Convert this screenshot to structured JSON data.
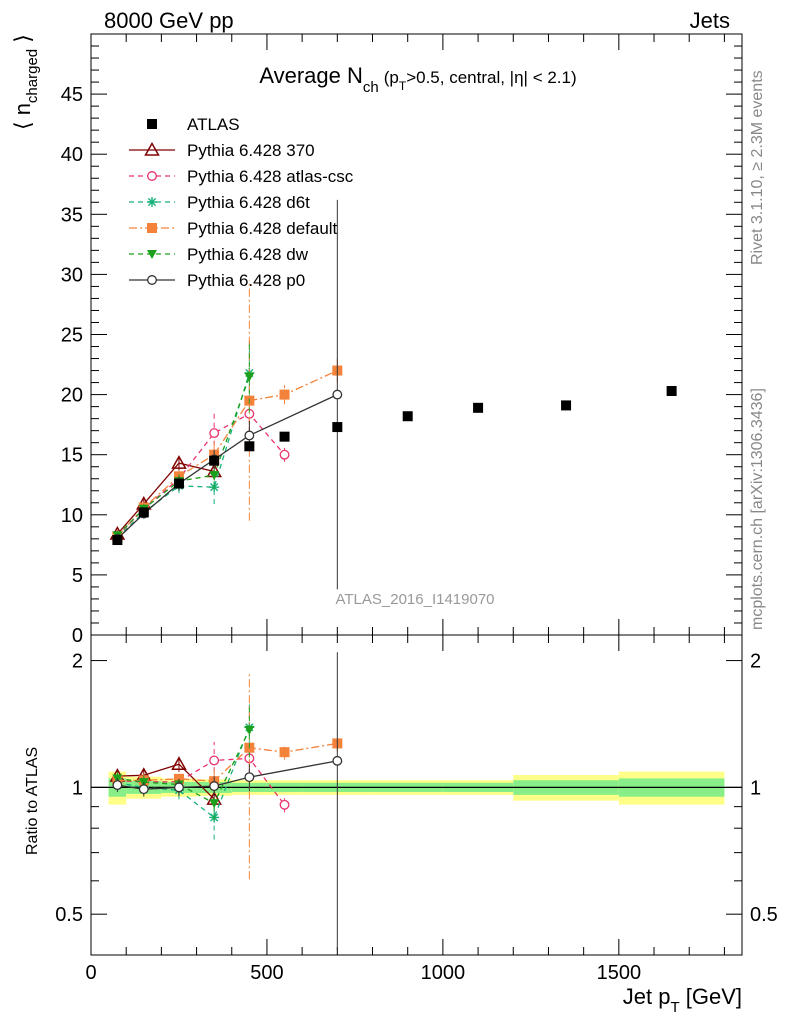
{
  "header": {
    "left": "8000 GeV pp",
    "right": "Jets"
  },
  "side_labels": {
    "rivet": "Rivet 3.1.10, ≥ 2.3M events",
    "mcplots": "mcplots.cern.ch [arXiv:1306.3436]"
  },
  "watermark": "ATLAS_2016_I1419070",
  "chart_data": {
    "type": "scatter",
    "title": {
      "main": "Average N",
      "sub": "ch",
      "cut_open": "(p",
      "cut_sub": "T",
      "cut_rest": ">0.5, central, |η| < 2.1)"
    },
    "xlabel": {
      "main": "Jet p",
      "sub": "T",
      "unit": " [GeV]"
    },
    "ylabel": {
      "open": "⟨ n",
      "sub": "charged",
      "close": " ⟩"
    },
    "ratio_ylabel": "Ratio to ATLAS",
    "xlim": [
      0,
      1850
    ],
    "ylim": [
      0,
      50
    ],
    "ratio_ylim": [
      0.4,
      2.3
    ],
    "ratio_scale": "log",
    "x_ticks": [
      0,
      500,
      1000,
      1500
    ],
    "y_ticks": [
      0,
      5,
      10,
      15,
      20,
      25,
      30,
      35,
      40,
      45
    ],
    "ratio_ticks": [
      0.5,
      1,
      2
    ],
    "x_tick_labels": [
      "0",
      "500",
      "1000",
      "1500"
    ],
    "y_tick_labels": [
      "0",
      "5",
      "10",
      "15",
      "20",
      "25",
      "30",
      "35",
      "40",
      "45"
    ],
    "ratio_tick_labels": [
      "0.5",
      "1",
      "2"
    ],
    "legend_position": "top-left",
    "data": {
      "name": "ATLAS",
      "color": "#000000",
      "x": [
        75,
        150,
        250,
        350,
        450,
        550,
        700,
        900,
        1100,
        1350,
        1650
      ],
      "y": [
        7.9,
        10.2,
        12.6,
        14.5,
        15.7,
        16.5,
        17.3,
        18.2,
        18.9,
        19.1,
        20.3
      ],
      "x_lo": [
        50,
        100,
        200,
        300,
        400,
        500,
        600,
        800,
        1000,
        1200,
        1500
      ],
      "x_hi": [
        100,
        200,
        300,
        400,
        500,
        600,
        800,
        1000,
        1200,
        1500,
        1800
      ],
      "band_inner": [
        0.05,
        0.035,
        0.03,
        0.03,
        0.025,
        0.025,
        0.025,
        0.025,
        0.025,
        0.04,
        0.05
      ],
      "band_outer": [
        0.09,
        0.06,
        0.05,
        0.045,
        0.04,
        0.04,
        0.04,
        0.04,
        0.04,
        0.07,
        0.09
      ]
    },
    "series": [
      {
        "name": "Pythia 6.428 370",
        "color": "#800000",
        "marker": "triangle-open",
        "dash": "",
        "x": [
          75,
          150,
          250,
          350
        ],
        "y": [
          8.4,
          10.9,
          14.3,
          13.6
        ],
        "err": [
          0.3,
          0.4,
          0.6,
          0.6
        ]
      },
      {
        "name": "Pythia 6.428 atlas-csc",
        "color": "#e8336b",
        "marker": "circle-open",
        "dash": "5,4",
        "x": [
          75,
          150,
          250,
          350,
          450,
          550
        ],
        "y": [
          8.2,
          10.5,
          13.0,
          16.8,
          18.4,
          15.0
        ],
        "err": [
          0.3,
          0.4,
          0.6,
          1.8,
          1.5,
          0.6
        ]
      },
      {
        "name": "Pythia 6.428 d6t",
        "color": "#19b27a",
        "marker": "star",
        "dash": "5,4",
        "x": [
          75,
          150,
          250,
          350,
          450
        ],
        "y": [
          8.1,
          10.2,
          12.4,
          12.3,
          21.8
        ],
        "err": [
          0.3,
          0.4,
          0.6,
          1.4,
          3.0
        ]
      },
      {
        "name": "Pythia 6.428 default",
        "color": "#f4823b",
        "marker": "square-filled",
        "dash": "8,3,2,3",
        "x": [
          75,
          150,
          250,
          350,
          450,
          550,
          700
        ],
        "y": [
          8.2,
          10.6,
          13.2,
          15.0,
          19.5,
          20.0,
          22.0
        ],
        "err": [
          0.3,
          0.4,
          0.6,
          1.0,
          10.0,
          0.8,
          1.0
        ]
      },
      {
        "name": "Pythia 6.428 dw",
        "color": "#1aa01a",
        "marker": "triangle-down-filled",
        "dash": "5,4",
        "x": [
          75,
          150,
          250,
          350,
          450
        ],
        "y": [
          8.3,
          10.5,
          12.8,
          13.3,
          21.5
        ],
        "err": [
          0.3,
          0.4,
          0.6,
          1.2,
          3.0
        ]
      },
      {
        "name": "Pythia 6.428 p0",
        "color": "#333333",
        "marker": "circle-open",
        "dash": "",
        "x": [
          75,
          150,
          250,
          350,
          450,
          700
        ],
        "y": [
          8.0,
          10.1,
          12.6,
          14.6,
          16.6,
          20.0
        ],
        "err": [
          0.3,
          0.4,
          0.6,
          0.8,
          1.2,
          16.2
        ]
      }
    ]
  }
}
